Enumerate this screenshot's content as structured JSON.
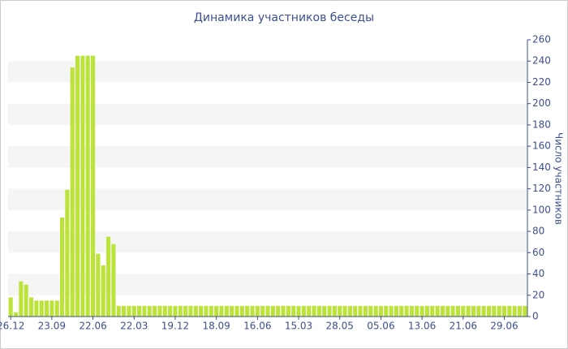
{
  "chart_data": {
    "type": "bar",
    "title": "Динамика участников беседы",
    "y_label": "Число участников",
    "categories": [
      "26.12",
      null,
      null,
      null,
      null,
      null,
      null,
      null,
      "23.09",
      null,
      null,
      null,
      null,
      null,
      null,
      null,
      "22.06",
      null,
      null,
      null,
      null,
      null,
      null,
      null,
      "22.03",
      null,
      null,
      null,
      null,
      null,
      null,
      null,
      "19.12",
      null,
      null,
      null,
      null,
      null,
      null,
      null,
      "18.09",
      null,
      null,
      null,
      null,
      null,
      null,
      null,
      "16.06",
      null,
      null,
      null,
      null,
      null,
      null,
      null,
      "15.03",
      null,
      null,
      null,
      null,
      null,
      null,
      null,
      "28.05",
      null,
      null,
      null,
      null,
      null,
      null,
      null,
      "05.06",
      null,
      null,
      null,
      null,
      null,
      null,
      null,
      "13.06",
      null,
      null,
      null,
      null,
      null,
      null,
      null,
      "21.06",
      null,
      null,
      null,
      null,
      null,
      null,
      null,
      "29.06",
      null,
      null,
      null,
      null
    ],
    "values": [
      18,
      4,
      33,
      30,
      18,
      15,
      15,
      15,
      15,
      15,
      93,
      119,
      234,
      245,
      245,
      245,
      245,
      59,
      48,
      75,
      68,
      10,
      10,
      10,
      10,
      10,
      10,
      10,
      10,
      10,
      10,
      10,
      10,
      10,
      10,
      10,
      10,
      10,
      10,
      10,
      10,
      10,
      10,
      10,
      10,
      10,
      10,
      10,
      10,
      10,
      10,
      10,
      10,
      10,
      10,
      10,
      10,
      10,
      10,
      10,
      10,
      10,
      10,
      10,
      10,
      10,
      10,
      10,
      10,
      10,
      10,
      10,
      10,
      10,
      10,
      10,
      10,
      10,
      10,
      10,
      10,
      10,
      10,
      10,
      10,
      10,
      10,
      10,
      10,
      10,
      10,
      10,
      10,
      10,
      10,
      10,
      10,
      10,
      10,
      10,
      10
    ],
    "color": "#bce33a",
    "ylim": [
      0,
      260
    ],
    "yticks": [
      0,
      20,
      40,
      60,
      80,
      100,
      120,
      140,
      160,
      180,
      200,
      220,
      240,
      260
    ],
    "grid": "bands",
    "y_axis_side": "right"
  }
}
